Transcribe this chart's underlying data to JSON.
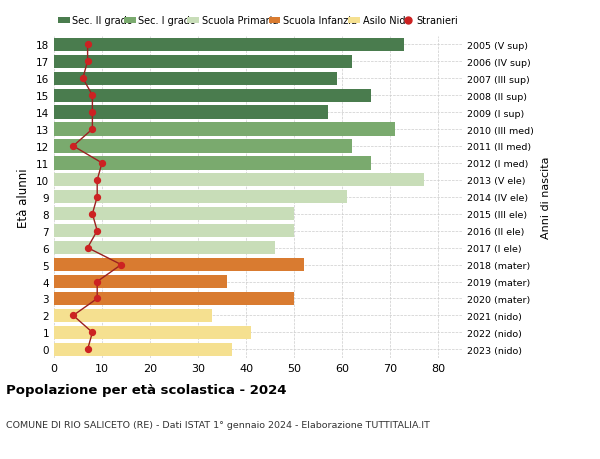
{
  "ages": [
    18,
    17,
    16,
    15,
    14,
    13,
    12,
    11,
    10,
    9,
    8,
    7,
    6,
    5,
    4,
    3,
    2,
    1,
    0
  ],
  "years": [
    "2005 (V sup)",
    "2006 (IV sup)",
    "2007 (III sup)",
    "2008 (II sup)",
    "2009 (I sup)",
    "2010 (III med)",
    "2011 (II med)",
    "2012 (I med)",
    "2013 (V ele)",
    "2014 (IV ele)",
    "2015 (III ele)",
    "2016 (II ele)",
    "2017 (I ele)",
    "2018 (mater)",
    "2019 (mater)",
    "2020 (mater)",
    "2021 (nido)",
    "2022 (nido)",
    "2023 (nido)"
  ],
  "bar_values": [
    73,
    62,
    59,
    66,
    57,
    71,
    62,
    66,
    77,
    61,
    50,
    50,
    46,
    52,
    36,
    50,
    33,
    41,
    37
  ],
  "bar_colors": [
    "#4a7c4e",
    "#4a7c4e",
    "#4a7c4e",
    "#4a7c4e",
    "#4a7c4e",
    "#7aaa6e",
    "#7aaa6e",
    "#7aaa6e",
    "#c8ddb8",
    "#c8ddb8",
    "#c8ddb8",
    "#c8ddb8",
    "#c8ddb8",
    "#d97b30",
    "#d97b30",
    "#d97b30",
    "#f5e090",
    "#f5e090",
    "#f5e090"
  ],
  "stranieri_values": [
    7,
    7,
    6,
    8,
    8,
    8,
    4,
    10,
    9,
    9,
    8,
    9,
    7,
    14,
    9,
    9,
    4,
    8,
    7
  ],
  "legend_labels": [
    "Sec. II grado",
    "Sec. I grado",
    "Scuola Primaria",
    "Scuola Infanzia",
    "Asilo Nido",
    "Stranieri"
  ],
  "legend_colors": [
    "#4a7c4e",
    "#7aaa6e",
    "#c8ddb8",
    "#d97b30",
    "#f5e090",
    "#cc2222"
  ],
  "ylabel": "Età alunni",
  "ylabel_right": "Anni di nascita",
  "title": "Popolazione per età scolastica - 2024",
  "subtitle": "COMUNE DI RIO SALICETO (RE) - Dati ISTAT 1° gennaio 2024 - Elaborazione TUTTITALIA.IT",
  "xlim": [
    0,
    85
  ],
  "background_color": "#ffffff",
  "grid_color": "#cccccc",
  "stranieri_line_color": "#9b2020",
  "stranieri_dot_color": "#cc2222"
}
